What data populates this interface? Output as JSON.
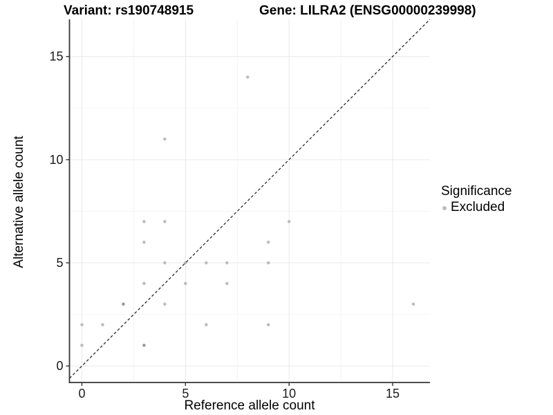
{
  "titles": {
    "variant": "Variant: rs190748915",
    "gene": "Gene: LILRA2 (ENSG00000239998)"
  },
  "legend": {
    "title": "Significance",
    "items": [
      {
        "label": "Excluded",
        "color": "#bdbdbd"
      }
    ]
  },
  "chart_data": {
    "type": "scatter",
    "title": "Variant: rs190748915 | Gene: LILRA2 (ENSG00000239998)",
    "xlabel": "Reference allele count",
    "ylabel": "Alternative allele count",
    "xlim": [
      -0.6,
      16.8
    ],
    "ylim": [
      -0.8,
      16.8
    ],
    "x_major_ticks": [
      0,
      5,
      10,
      15
    ],
    "y_major_ticks": [
      0,
      5,
      10,
      15
    ],
    "x_minor_gridlines": [
      2.5,
      7.5,
      12.5
    ],
    "y_minor_gridlines": [
      2.5,
      7.5,
      12.5
    ],
    "grid_major_color": "#e9e9e9",
    "grid_minor_color": "#f4f4f4",
    "axis_line_color": "#333333",
    "point_color": "#bdbdbd",
    "point_color_overlap": "#999999",
    "identity_line": {
      "type": "y=x",
      "style": "dashed",
      "color": "#1a1a1a"
    },
    "series": [
      {
        "name": "Excluded",
        "points": [
          {
            "x": 0,
            "y": 1,
            "n": 1
          },
          {
            "x": 0,
            "y": 2,
            "n": 1
          },
          {
            "x": 1,
            "y": 2,
            "n": 1
          },
          {
            "x": 2,
            "y": 3,
            "n": 2
          },
          {
            "x": 3,
            "y": 1,
            "n": 2
          },
          {
            "x": 3,
            "y": 4,
            "n": 1
          },
          {
            "x": 3,
            "y": 6,
            "n": 1
          },
          {
            "x": 3,
            "y": 7,
            "n": 1
          },
          {
            "x": 4,
            "y": 3,
            "n": 1
          },
          {
            "x": 4,
            "y": 5,
            "n": 1
          },
          {
            "x": 4,
            "y": 7,
            "n": 1
          },
          {
            "x": 4,
            "y": 11,
            "n": 1
          },
          {
            "x": 5,
            "y": 4,
            "n": 1
          },
          {
            "x": 5,
            "y": 5,
            "n": 1
          },
          {
            "x": 6,
            "y": 2,
            "n": 1
          },
          {
            "x": 6,
            "y": 5,
            "n": 1
          },
          {
            "x": 7,
            "y": 4,
            "n": 1
          },
          {
            "x": 7,
            "y": 5,
            "n": 1
          },
          {
            "x": 8,
            "y": 14,
            "n": 1
          },
          {
            "x": 9,
            "y": 2,
            "n": 1
          },
          {
            "x": 9,
            "y": 5,
            "n": 1
          },
          {
            "x": 9,
            "y": 6,
            "n": 1
          },
          {
            "x": 10,
            "y": 7,
            "n": 1
          },
          {
            "x": 16,
            "y": 3,
            "n": 1
          }
        ]
      }
    ]
  }
}
